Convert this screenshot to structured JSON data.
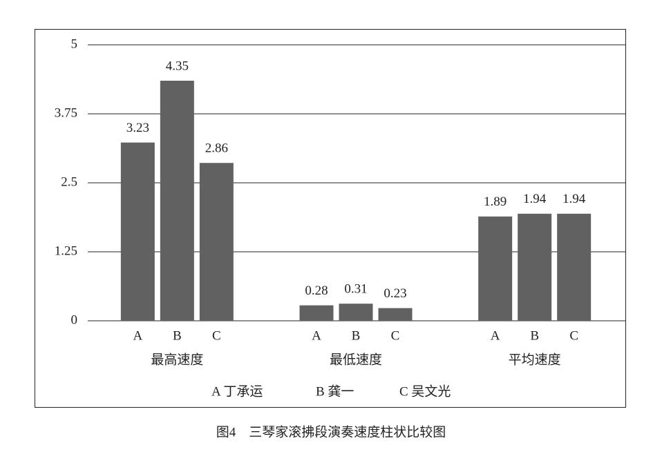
{
  "chart_data": {
    "type": "bar",
    "title": "图4　三琴家滚拂段演奏速度柱状比较图",
    "categories": [
      "最高速度",
      "最低速度",
      "平均速度"
    ],
    "bar_labels": [
      "A",
      "B",
      "C"
    ],
    "series": [
      {
        "name": "A 丁承运",
        "color": "#616161",
        "values": [
          3.23,
          0.28,
          1.89
        ]
      },
      {
        "name": "B 龚一",
        "color": "#616161",
        "values": [
          4.35,
          0.31,
          1.94
        ]
      },
      {
        "name": "C 吴文光",
        "color": "#616161",
        "values": [
          2.86,
          0.23,
          1.94
        ]
      }
    ],
    "ylim": [
      0,
      5
    ],
    "yticks": [
      0,
      1.25,
      2.5,
      3.75,
      5
    ],
    "grid": true
  }
}
